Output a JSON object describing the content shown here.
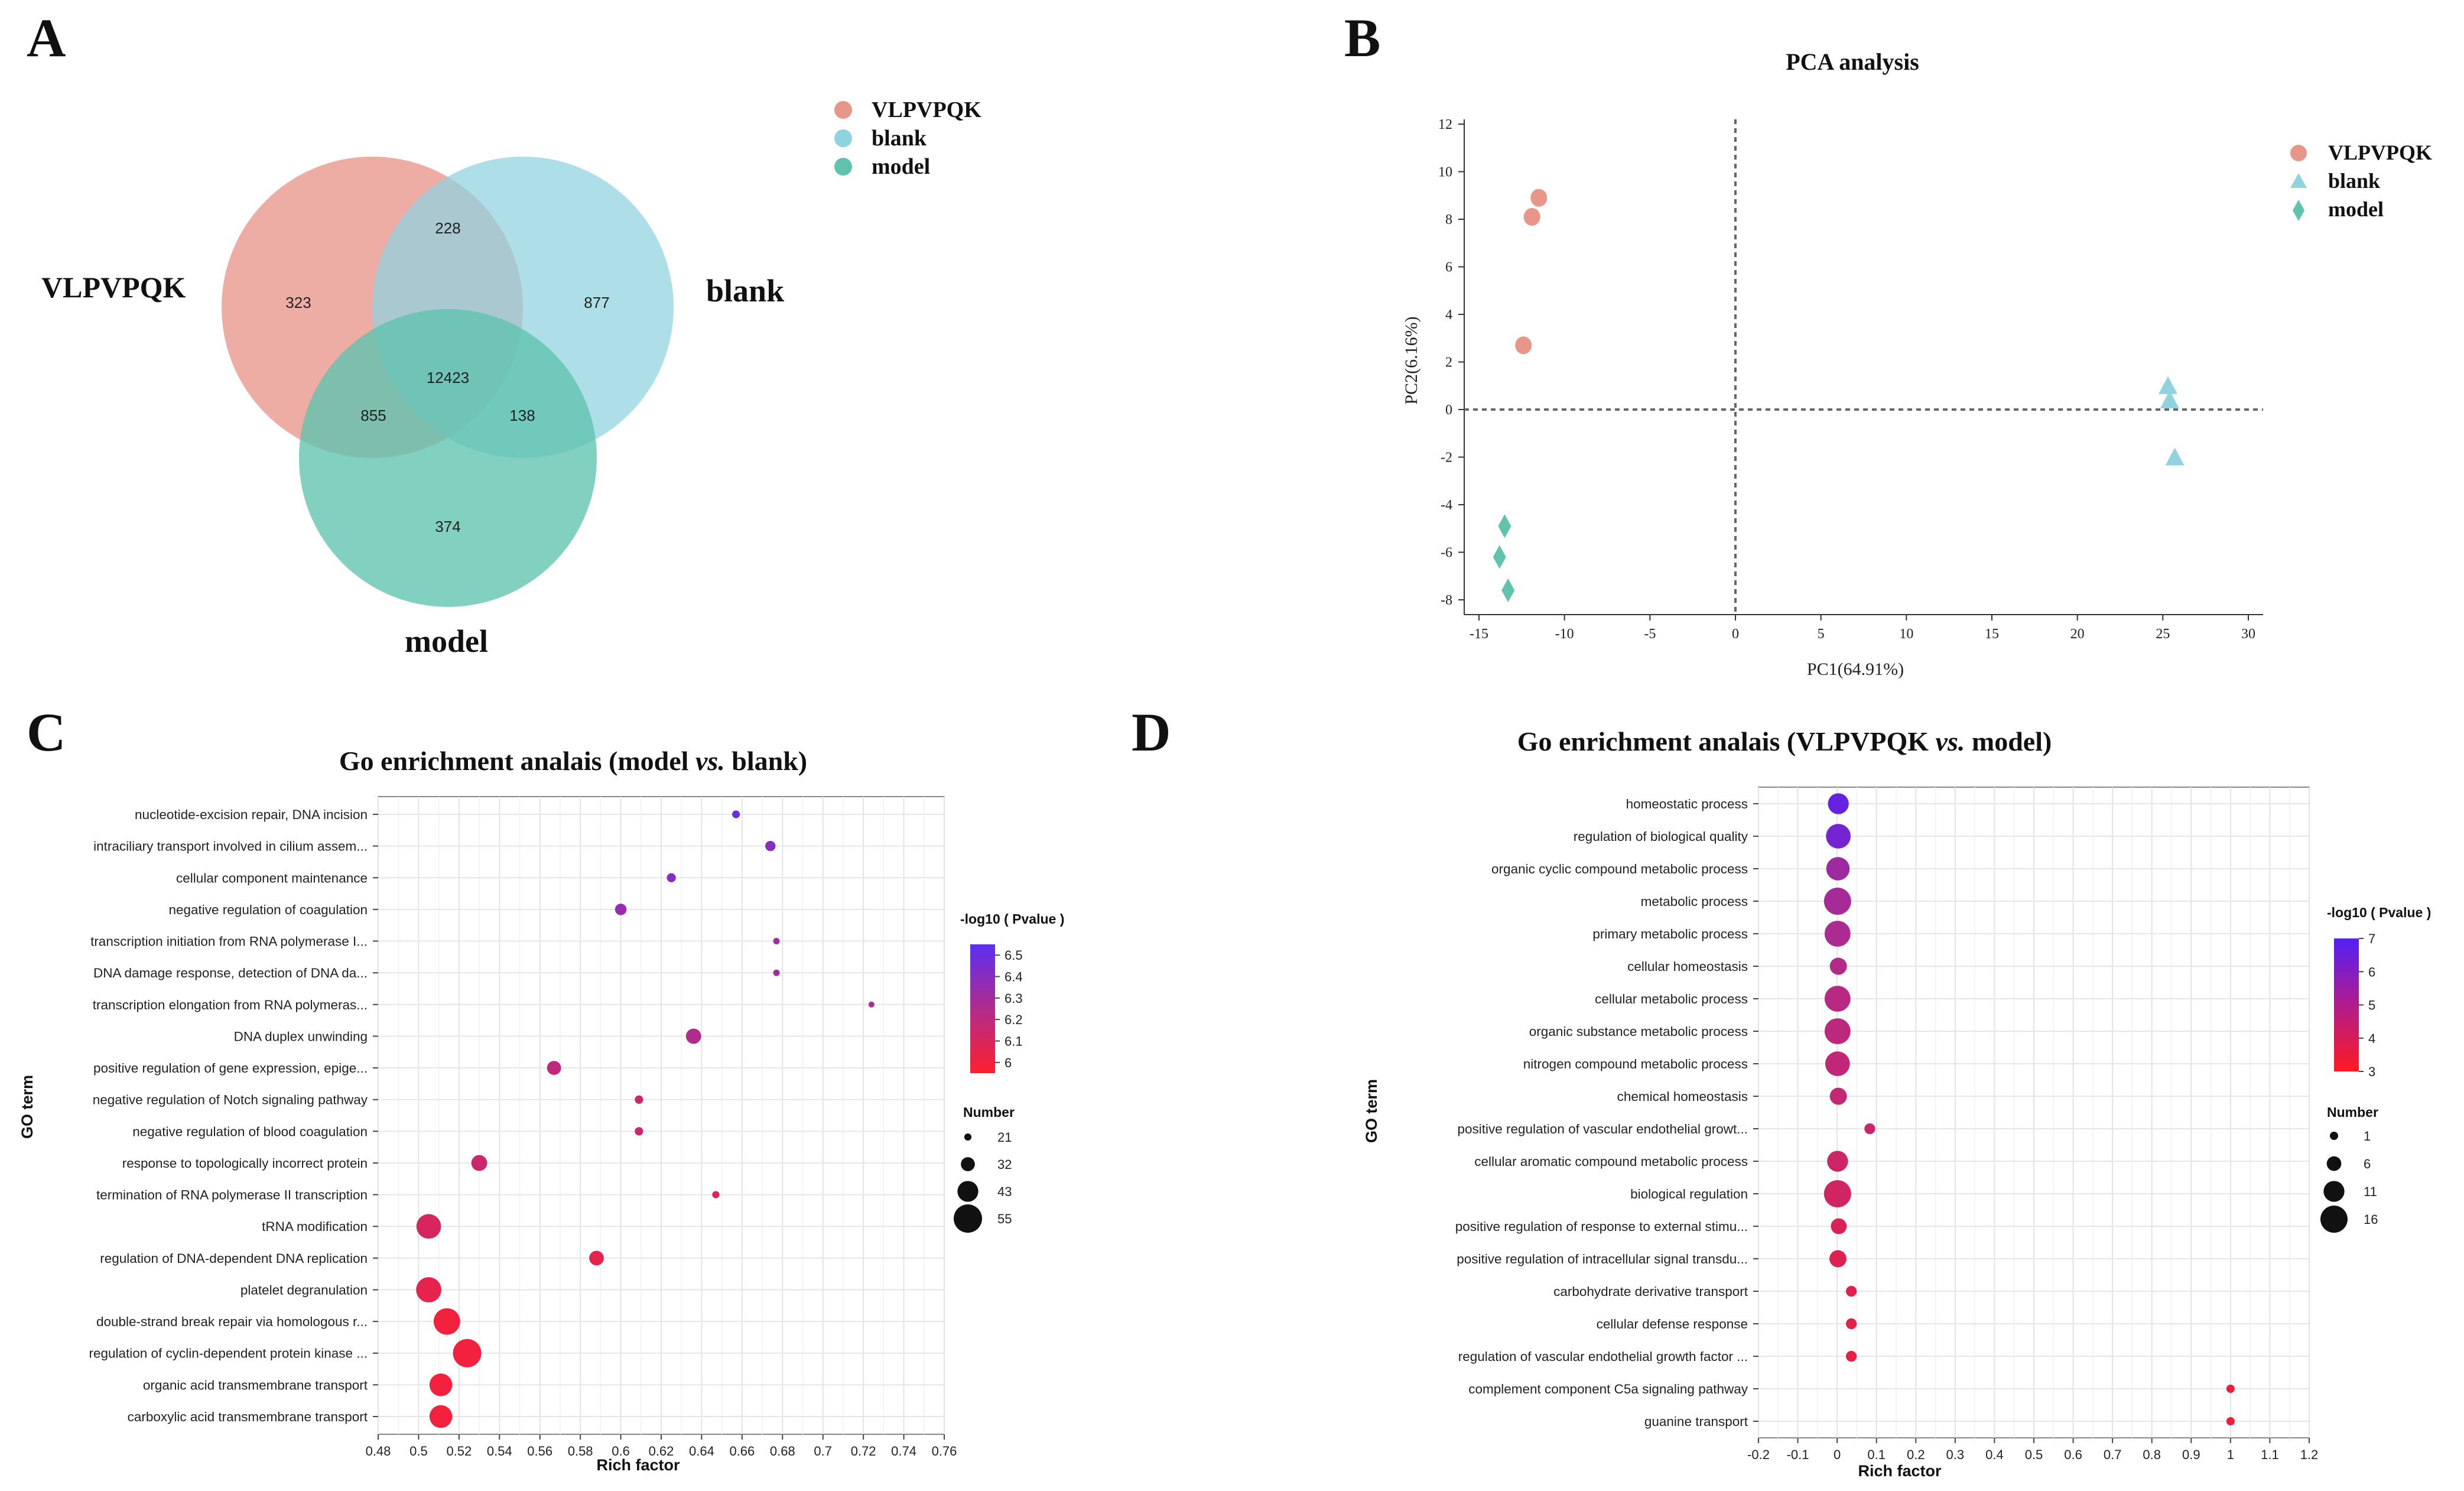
{
  "panel_labels": {
    "a": "A",
    "b": "B",
    "c": "C",
    "d": "D"
  },
  "colors": {
    "vlpvpqk": "#E8958A",
    "blank": "#8FD3E0",
    "model": "#5FC3AE",
    "grad_c_top": "#5B2FF2",
    "grad_c_bottom": "#FF1F2E",
    "grad_d_top": "#5320F5",
    "grad_d_bottom": "#FF1A22",
    "grid": "#e8e8e8",
    "axis": "#333333"
  },
  "venn": {
    "legend": [
      "VLPVPQK",
      "blank",
      "model"
    ],
    "set_labels": {
      "a": "VLPVPQK",
      "b": "blank",
      "c": "model"
    },
    "regions": {
      "only_a": "323",
      "ab": "228",
      "only_b": "877",
      "abc": "12423",
      "ac": "855",
      "bc": "138",
      "only_c": "374"
    }
  },
  "chart_data": [
    {
      "id": "pca",
      "type": "scatter",
      "title": "PCA analysis",
      "xlabel": "PC1(64.91%)",
      "ylabel": "PC2(6.16%)",
      "xlim": [
        -15,
        30
      ],
      "ylim": [
        -8,
        12
      ],
      "xticks": [
        -15,
        -10,
        -5,
        0,
        5,
        10,
        15,
        20,
        25,
        30
      ],
      "yticks": [
        -8,
        -6,
        -4,
        -2,
        0,
        2,
        4,
        6,
        8,
        10,
        12
      ],
      "series": [
        {
          "name": "VLPVPQK",
          "shape": "circle",
          "color": "#E8958A",
          "points": [
            [
              -11.5,
              8.9
            ],
            [
              -11.9,
              8.1
            ],
            [
              -12.4,
              2.7
            ]
          ]
        },
        {
          "name": "blank",
          "shape": "triangle",
          "color": "#8FD3E0",
          "points": [
            [
              25.3,
              1.0
            ],
            [
              25.4,
              0.4
            ],
            [
              25.7,
              -2.0
            ]
          ]
        },
        {
          "name": "model",
          "shape": "diamond",
          "color": "#5FC3AE",
          "points": [
            [
              -13.5,
              -4.9
            ],
            [
              -13.8,
              -6.2
            ],
            [
              -13.3,
              -7.6
            ]
          ]
        }
      ]
    },
    {
      "id": "go_c",
      "type": "scatter",
      "title_main": "Go enrichment analais (model ",
      "title_italic": "vs.",
      "title_end": " blank)",
      "xlabel": "Rich factor",
      "ylabel": "GO term",
      "xlim": [
        0.48,
        0.76
      ],
      "xticks": [
        "0.48",
        "0.5",
        "0.52",
        "0.54",
        "0.56",
        "0.58",
        "0.6",
        "0.62",
        "0.64",
        "0.66",
        "0.68",
        "0.7",
        "0.72",
        "0.74",
        "0.76"
      ],
      "color_title": "-log10 ( Pvalue )",
      "color_range": [
        5.95,
        6.55
      ],
      "color_ticks": [
        "6.5",
        "6.4",
        "6.3",
        "6.2",
        "6.1",
        "6"
      ],
      "color_tick_values": [
        6.5,
        6.4,
        6.3,
        6.2,
        6.1,
        6.0
      ],
      "size_title": "Number",
      "size_legend": [
        "21",
        "32",
        "43",
        "55"
      ],
      "size_values": [
        21,
        32,
        43,
        55
      ],
      "terms": [
        {
          "label": "nucleotide-excision repair, DNA incision",
          "x": 0.657,
          "number": 22,
          "p": 6.5
        },
        {
          "label": "intraciliary transport involved in cilium assem...",
          "x": 0.674,
          "number": 26,
          "p": 6.4
        },
        {
          "label": "cellular component maintenance",
          "x": 0.625,
          "number": 24,
          "p": 6.4
        },
        {
          "label": "negative regulation of coagulation",
          "x": 0.6,
          "number": 28,
          "p": 6.35
        },
        {
          "label": "transcription initiation from RNA polymerase I...",
          "x": 0.677,
          "number": 20,
          "p": 6.3
        },
        {
          "label": "DNA damage response, detection of DNA da...",
          "x": 0.677,
          "number": 20,
          "p": 6.3
        },
        {
          "label": "transcription elongation from RNA polymeras...",
          "x": 0.724,
          "number": 19,
          "p": 6.25
        },
        {
          "label": "DNA duplex unwinding",
          "x": 0.636,
          "number": 34,
          "p": 6.25
        },
        {
          "label": "positive regulation of gene expression, epige...",
          "x": 0.567,
          "number": 32,
          "p": 6.2
        },
        {
          "label": "negative regulation of Notch signaling pathway",
          "x": 0.609,
          "number": 23,
          "p": 6.15
        },
        {
          "label": "negative regulation of blood coagulation",
          "x": 0.609,
          "number": 23,
          "p": 6.15
        },
        {
          "label": "response to topologically incorrect protein",
          "x": 0.53,
          "number": 35,
          "p": 6.15
        },
        {
          "label": "termination of RNA polymerase II transcription",
          "x": 0.647,
          "number": 21,
          "p": 6.1
        },
        {
          "label": "tRNA modification",
          "x": 0.505,
          "number": 49,
          "p": 6.1
        },
        {
          "label": "regulation of DNA-dependent DNA replication",
          "x": 0.588,
          "number": 33,
          "p": 6.05
        },
        {
          "label": "platelet degranulation",
          "x": 0.505,
          "number": 50,
          "p": 6.05
        },
        {
          "label": "double-strand break repair via homologous r...",
          "x": 0.514,
          "number": 52,
          "p": 6.0
        },
        {
          "label": "regulation of cyclin-dependent protein kinase ...",
          "x": 0.524,
          "number": 55,
          "p": 6.0
        },
        {
          "label": "organic acid transmembrane transport",
          "x": 0.511,
          "number": 46,
          "p": 6.0
        },
        {
          "label": "carboxylic acid transmembrane transport",
          "x": 0.511,
          "number": 46,
          "p": 6.0
        }
      ]
    },
    {
      "id": "go_d",
      "type": "scatter",
      "title_main": "Go enrichment analais (VLPVPQK ",
      "title_italic": "vs.",
      "title_end": " model)",
      "xlabel": "Rich factor",
      "ylabel": "GO term",
      "xlim": [
        -0.2,
        1.2
      ],
      "xticks": [
        "-0.2",
        "-0.1",
        "0",
        "0.1",
        "0.2",
        "0.3",
        "0.4",
        "0.5",
        "0.6",
        "0.7",
        "0.8",
        "0.9",
        "1",
        "1.1",
        "1.2"
      ],
      "color_title": "-log10 ( Pvalue )",
      "color_range": [
        3,
        7
      ],
      "color_ticks": [
        "7",
        "6",
        "5",
        "4",
        "3"
      ],
      "color_tick_values": [
        7,
        6,
        5,
        4,
        3
      ],
      "size_title": "Number",
      "size_legend": [
        "1",
        "6",
        "11",
        "16"
      ],
      "size_values": [
        1,
        6,
        11,
        16
      ],
      "terms": [
        {
          "label": "homeostatic process",
          "x": 0.003,
          "number": 11,
          "p": 6.6
        },
        {
          "label": "regulation of biological quality",
          "x": 0.003,
          "number": 14,
          "p": 6.3
        },
        {
          "label": "organic cyclic compound metabolic process",
          "x": 0.002,
          "number": 13,
          "p": 5.4
        },
        {
          "label": "metabolic process",
          "x": 0.001,
          "number": 16,
          "p": 5.2
        },
        {
          "label": "primary metabolic process",
          "x": 0.001,
          "number": 15,
          "p": 5.1
        },
        {
          "label": "cellular homeostasis",
          "x": 0.003,
          "number": 8,
          "p": 4.9
        },
        {
          "label": "cellular metabolic process",
          "x": 0.001,
          "number": 15,
          "p": 4.8
        },
        {
          "label": "organic substance metabolic process",
          "x": 0.001,
          "number": 15,
          "p": 4.7
        },
        {
          "label": "nitrogen compound metabolic process",
          "x": 0.001,
          "number": 14,
          "p": 4.6
        },
        {
          "label": "chemical homeostasis",
          "x": 0.003,
          "number": 8,
          "p": 4.5
        },
        {
          "label": "positive regulation of vascular endothelial growt...",
          "x": 0.083,
          "number": 3,
          "p": 4.4
        },
        {
          "label": "cellular aromatic compound metabolic process",
          "x": 0.001,
          "number": 11,
          "p": 4.3
        },
        {
          "label": "biological regulation",
          "x": 0.001,
          "number": 16,
          "p": 4.2
        },
        {
          "label": "positive regulation of response to external stimu...",
          "x": 0.004,
          "number": 7,
          "p": 4.0
        },
        {
          "label": "positive regulation of intracellular signal transdu...",
          "x": 0.002,
          "number": 8,
          "p": 3.9
        },
        {
          "label": "carbohydrate derivative transport",
          "x": 0.036,
          "number": 3,
          "p": 3.8
        },
        {
          "label": "cellular defense response",
          "x": 0.036,
          "number": 3,
          "p": 3.7
        },
        {
          "label": "regulation of vascular endothelial growth factor ...",
          "x": 0.036,
          "number": 3,
          "p": 3.6
        },
        {
          "label": "complement component C5a signaling pathway",
          "x": 1.0,
          "number": 1,
          "p": 3.5
        },
        {
          "label": "guanine transport",
          "x": 1.0,
          "number": 1,
          "p": 3.4
        }
      ]
    }
  ]
}
